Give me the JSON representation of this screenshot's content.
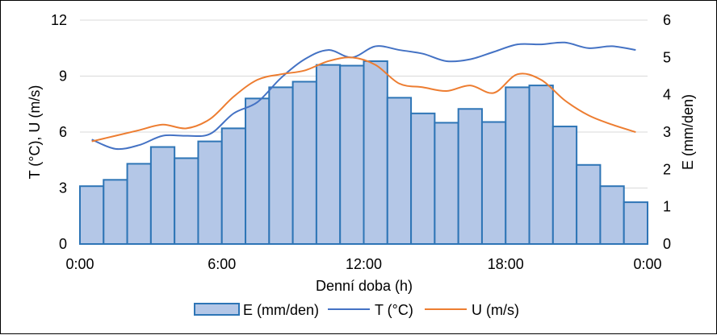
{
  "chart_data": {
    "type": "bar+line",
    "xlabel": "Denní doba (h)",
    "ylabel_left": "T (°C), U (m/s)",
    "ylabel_right": "E (mm/den)",
    "ylim_left": [
      0,
      12
    ],
    "ylim_right": [
      0,
      6
    ],
    "xlim_hours": [
      0,
      24
    ],
    "x_tick_labels": [
      "0:00",
      "6:00",
      "12:00",
      "18:00",
      "0:00"
    ],
    "y_left_ticks": [
      "0",
      "3",
      "6",
      "9",
      "12"
    ],
    "y_right_ticks": [
      "0",
      "1",
      "2",
      "3",
      "4",
      "5",
      "6"
    ],
    "grid": "horizontal",
    "legend_position": "bottom",
    "bars": {
      "name": "E (mm/den)",
      "axis": "right",
      "color": "#b4c7e7",
      "edge_color": "#2e75b6",
      "hours": [
        0,
        1,
        2,
        3,
        4,
        5,
        6,
        7,
        8,
        9,
        10,
        11,
        12,
        13,
        14,
        15,
        16,
        17,
        18,
        19,
        20,
        21,
        22,
        23
      ],
      "values": [
        1.55,
        1.72,
        2.15,
        2.6,
        2.3,
        2.75,
        3.1,
        3.9,
        4.2,
        4.35,
        4.8,
        4.78,
        4.9,
        3.92,
        3.5,
        3.25,
        3.62,
        3.27,
        4.2,
        4.25,
        3.15,
        2.12,
        1.55,
        1.12
      ]
    },
    "lines": [
      {
        "name": "T (°C)",
        "axis": "left",
        "color": "#4472c4",
        "x": [
          0,
          1,
          2,
          3,
          4,
          5,
          6,
          7,
          8,
          9,
          10,
          11,
          12,
          13,
          14,
          15,
          16,
          17,
          18,
          19,
          20,
          21,
          22,
          23
        ],
        "y": [
          5.6,
          5.1,
          5.3,
          5.8,
          5.8,
          5.9,
          7.0,
          7.6,
          8.9,
          9.9,
          10.4,
          10.0,
          10.6,
          10.4,
          10.2,
          9.8,
          9.9,
          10.3,
          10.7,
          10.7,
          10.8,
          10.5,
          10.6,
          10.4
        ]
      },
      {
        "name": "U (m/s)",
        "axis": "left",
        "color": "#ed7d31",
        "x": [
          0,
          1,
          2,
          3,
          4,
          5,
          6,
          7,
          8,
          9,
          10,
          11,
          12,
          13,
          14,
          15,
          16,
          17,
          18,
          19,
          20,
          21,
          22,
          23
        ],
        "y": [
          5.5,
          5.8,
          6.1,
          6.4,
          6.2,
          6.7,
          7.9,
          8.8,
          9.1,
          9.3,
          9.8,
          10.0,
          9.6,
          8.6,
          8.4,
          8.2,
          8.5,
          8.1,
          9.1,
          8.8,
          7.7,
          6.9,
          6.4,
          6.0
        ]
      }
    ]
  }
}
